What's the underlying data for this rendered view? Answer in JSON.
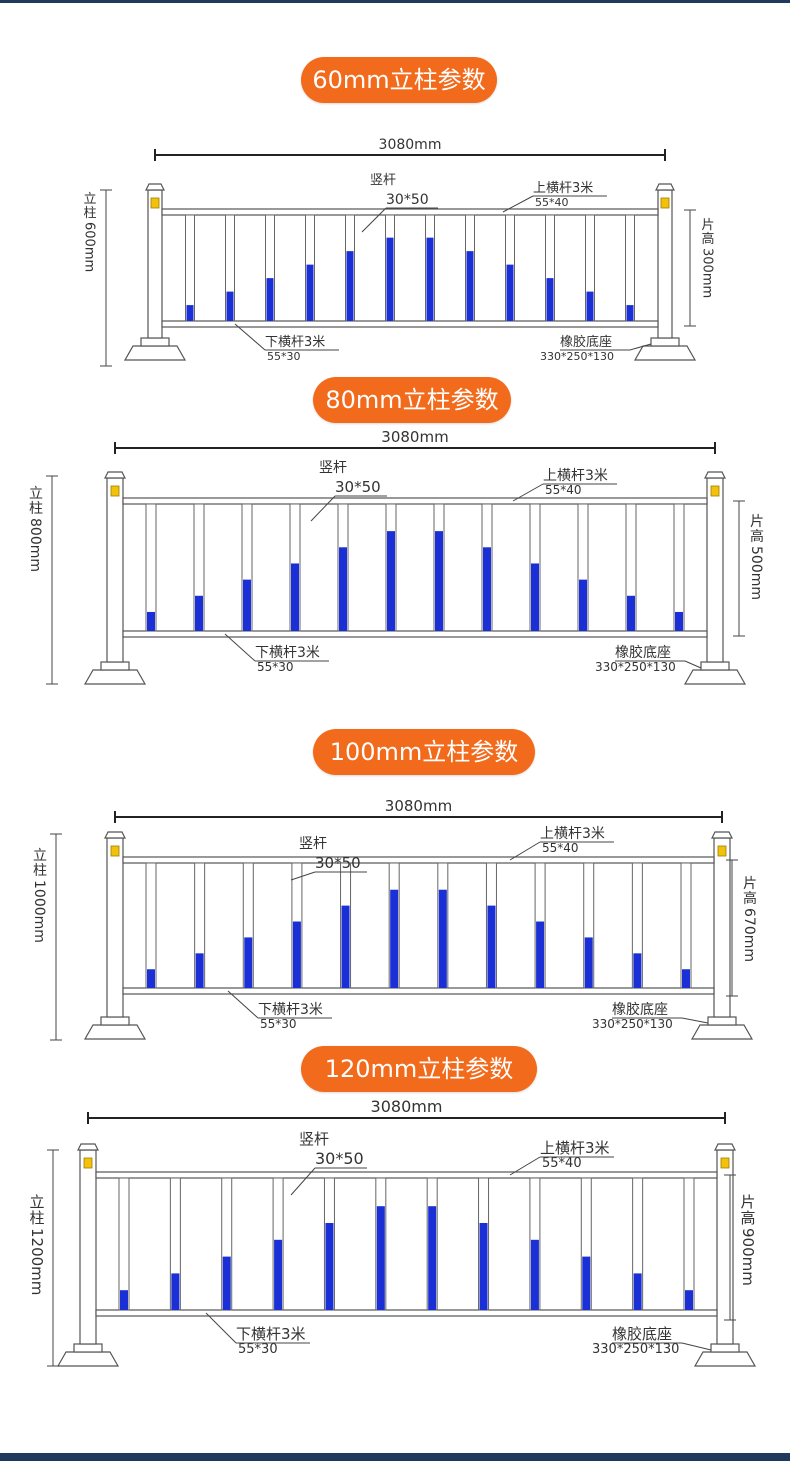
{
  "colors": {
    "accent": "#f26a1b",
    "frame": "#1f3a5c",
    "bar_fill": "#1a2fd6",
    "reflector": "#f2c20a"
  },
  "sections": [
    {
      "title": "60mm立柱参数",
      "total_length": "3080mm",
      "post_label": "立柱600mm",
      "panel_label": "片高300mm",
      "vertical_bar": "竖杆",
      "vertical_bar_size": "30*50",
      "top_rail": "上横杆3米",
      "top_rail_size": "55*40",
      "bottom_rail": "下横杆3米",
      "bottom_rail_size": "55*30",
      "base": "橡胶底座",
      "base_size": "330*250*130"
    },
    {
      "title": "80mm立柱参数",
      "total_length": "3080mm",
      "post_label": "立柱800mm",
      "panel_label": "片高500mm",
      "vertical_bar": "竖杆",
      "vertical_bar_size": "30*50",
      "top_rail": "上横杆3米",
      "top_rail_size": "55*40",
      "bottom_rail": "下横杆3米",
      "bottom_rail_size": "55*30",
      "base": "橡胶底座",
      "base_size": "330*250*130"
    },
    {
      "title": "100mm立柱参数",
      "total_length": "3080mm",
      "post_label": "立柱1000mm",
      "panel_label": "片高670mm",
      "vertical_bar": "竖杆",
      "vertical_bar_size": "30*50",
      "top_rail": "上横杆3米",
      "top_rail_size": "55*40",
      "bottom_rail": "下横杆3米",
      "bottom_rail_size": "55*30",
      "base": "橡胶底座",
      "base_size": "330*250*130"
    },
    {
      "title": "120mm立柱参数",
      "total_length": "3080mm",
      "post_label": "立柱1200mm",
      "panel_label": "片高900mm",
      "vertical_bar": "竖杆",
      "vertical_bar_size": "30*50",
      "top_rail": "上横杆3米",
      "top_rail_size": "55*40",
      "bottom_rail": "下横杆3米",
      "bottom_rail_size": "55*30",
      "base": "橡胶底座",
      "base_size": "330*250*130"
    }
  ]
}
